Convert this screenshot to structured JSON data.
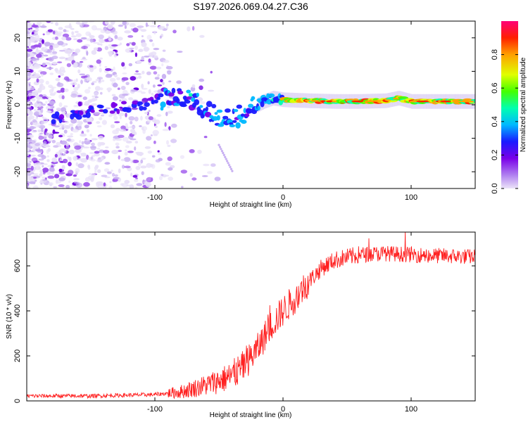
{
  "figure": {
    "title": "S197.2026.069.04.27.C36"
  },
  "chart_data": [
    {
      "type": "heatmap",
      "name": "spectrogram",
      "xlabel": "Height of straight line (km)",
      "ylabel": "Frequency (Hz)",
      "xlim": [
        -200,
        150
      ],
      "ylim": [
        -25,
        25
      ],
      "xticks": [
        -100,
        0,
        100
      ],
      "yticks": [
        -20,
        -10,
        0,
        10,
        20
      ],
      "colorbar": {
        "label": "Normalized spectral amplitude",
        "range": [
          0,
          1
        ],
        "ticks": [
          "0.0",
          "0.2",
          "0.4",
          "0.6",
          "0.8"
        ],
        "tick_values": [
          0,
          0.2,
          0.4,
          0.6,
          0.8
        ],
        "colormap": [
          "#e8e0f8",
          "#7a00e8",
          "#1a1aff",
          "#00b8ff",
          "#00ffb0",
          "#44ff00",
          "#e0ff00",
          "#ffa000",
          "#ff2000",
          "#ff0078"
        ]
      },
      "ridge": {
        "description_points_x": [
          -200,
          -170,
          -150,
          -130,
          -110,
          -95,
          -85,
          -75,
          -65,
          -55,
          -45,
          -35,
          -25,
          -15,
          -8,
          0,
          20,
          40,
          60,
          80,
          90,
          100,
          120,
          150
        ],
        "description_points_y": [
          -4.5,
          -3.5,
          -2.0,
          -1.0,
          0.0,
          1.5,
          3.0,
          2.0,
          0.0,
          -3.0,
          -4.0,
          -3.5,
          -1.0,
          1.0,
          2.0,
          1.5,
          1.2,
          1.0,
          1.0,
          1.2,
          2.0,
          1.0,
          1.0,
          1.0
        ]
      }
    },
    {
      "type": "line",
      "name": "snr",
      "xlabel": "Height of straight line (km)",
      "ylabel": "SNR (10 * v/v)",
      "xlim": [
        -200,
        150
      ],
      "ylim": [
        0,
        750
      ],
      "xticks": [
        -100,
        0,
        100
      ],
      "yticks": [
        0,
        200,
        400,
        600
      ],
      "color": "#ff2020",
      "trend_x": [
        -200,
        -150,
        -100,
        -80,
        -60,
        -40,
        -30,
        -20,
        -10,
        0,
        10,
        20,
        30,
        40,
        60,
        80,
        100,
        120,
        150
      ],
      "trend_y": [
        22,
        22,
        28,
        40,
        70,
        110,
        160,
        230,
        330,
        400,
        460,
        530,
        590,
        625,
        650,
        655,
        650,
        645,
        640
      ]
    }
  ]
}
